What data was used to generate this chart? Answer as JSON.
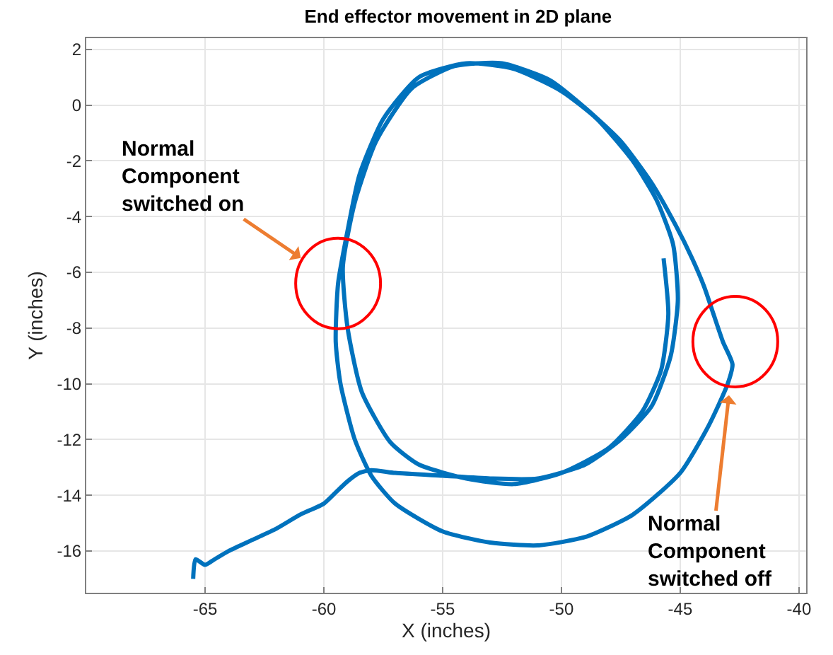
{
  "chart_data": {
    "type": "line",
    "title": "End effector movement in 2D plane",
    "xlabel": "X (inches)",
    "ylabel": "Y (inches)",
    "xlim": [
      -70,
      -39.7
    ],
    "ylim": [
      -17.5,
      2.4
    ],
    "xticks": [
      -65,
      -60,
      -55,
      -50,
      -45,
      -40
    ],
    "yticks": [
      -16,
      -14,
      -12,
      -10,
      -8,
      -6,
      -4,
      -2,
      0,
      2
    ],
    "grid": true,
    "marker": "none",
    "line_style": "solid",
    "series": [
      {
        "color": "#0072bd",
        "x": [
          -65.5,
          -65.4,
          -65.0,
          -64.6,
          -64.0,
          -63.0,
          -62.0,
          -61.0,
          -60.0,
          -59.5,
          -59.0,
          -58.5,
          -58.0,
          -57.0,
          -55.0,
          -53.0,
          -51.0,
          -49.0,
          -47.5,
          -46.2,
          -45.4,
          -45.1,
          -45.3,
          -46.0,
          -47.0,
          -48.5,
          -50.0,
          -52.0,
          -54.0,
          -56.0,
          -57.5,
          -58.5,
          -59.0,
          -59.4,
          -59.5,
          -59.3,
          -58.7,
          -58.0,
          -57.0,
          -55.0,
          -53.0,
          -51.0,
          -49.0,
          -47.0,
          -45.0,
          -43.8,
          -43.0,
          -42.8,
          -43.2,
          -43.6,
          -44.0,
          -44.5,
          -45.2,
          -46.2,
          -47.5,
          -49.0,
          -50.5,
          -52.5,
          -54.5,
          -56.3,
          -57.8,
          -58.7,
          -59.2,
          -59.0,
          -58.4,
          -57.2,
          -56.0,
          -54.0,
          -52.0,
          -50.0,
          -48.0,
          -46.6,
          -45.8,
          -45.5,
          -45.7
        ],
        "values": [
          -17.0,
          -16.3,
          -16.5,
          -16.3,
          -16.0,
          -15.6,
          -15.2,
          -14.7,
          -14.3,
          -13.9,
          -13.5,
          -13.2,
          -13.1,
          -13.2,
          -13.3,
          -13.4,
          -13.4,
          -12.9,
          -12.0,
          -10.8,
          -9.0,
          -7.0,
          -5.0,
          -3.4,
          -2.0,
          -0.5,
          0.5,
          1.3,
          1.5,
          1.0,
          -0.5,
          -2.5,
          -4.5,
          -6.4,
          -8.5,
          -10.0,
          -12.0,
          -13.3,
          -14.3,
          -15.3,
          -15.7,
          -15.8,
          -15.5,
          -14.7,
          -13.2,
          -11.5,
          -10.0,
          -9.3,
          -8.5,
          -7.5,
          -6.5,
          -5.5,
          -4.3,
          -2.8,
          -1.3,
          -0.1,
          0.9,
          1.5,
          1.4,
          0.6,
          -1.3,
          -3.5,
          -5.8,
          -8.0,
          -10.3,
          -12.1,
          -12.9,
          -13.4,
          -13.6,
          -13.2,
          -12.3,
          -11.0,
          -9.5,
          -7.5,
          -5.5
        ]
      }
    ],
    "annotations": [
      {
        "text": "Normal\nComponent\nswitched on",
        "x": -59.4,
        "y": -6.4
      },
      {
        "text": "Normal\nComponent\nswitched off",
        "x": -42.8,
        "y": -9.3
      }
    ]
  }
}
